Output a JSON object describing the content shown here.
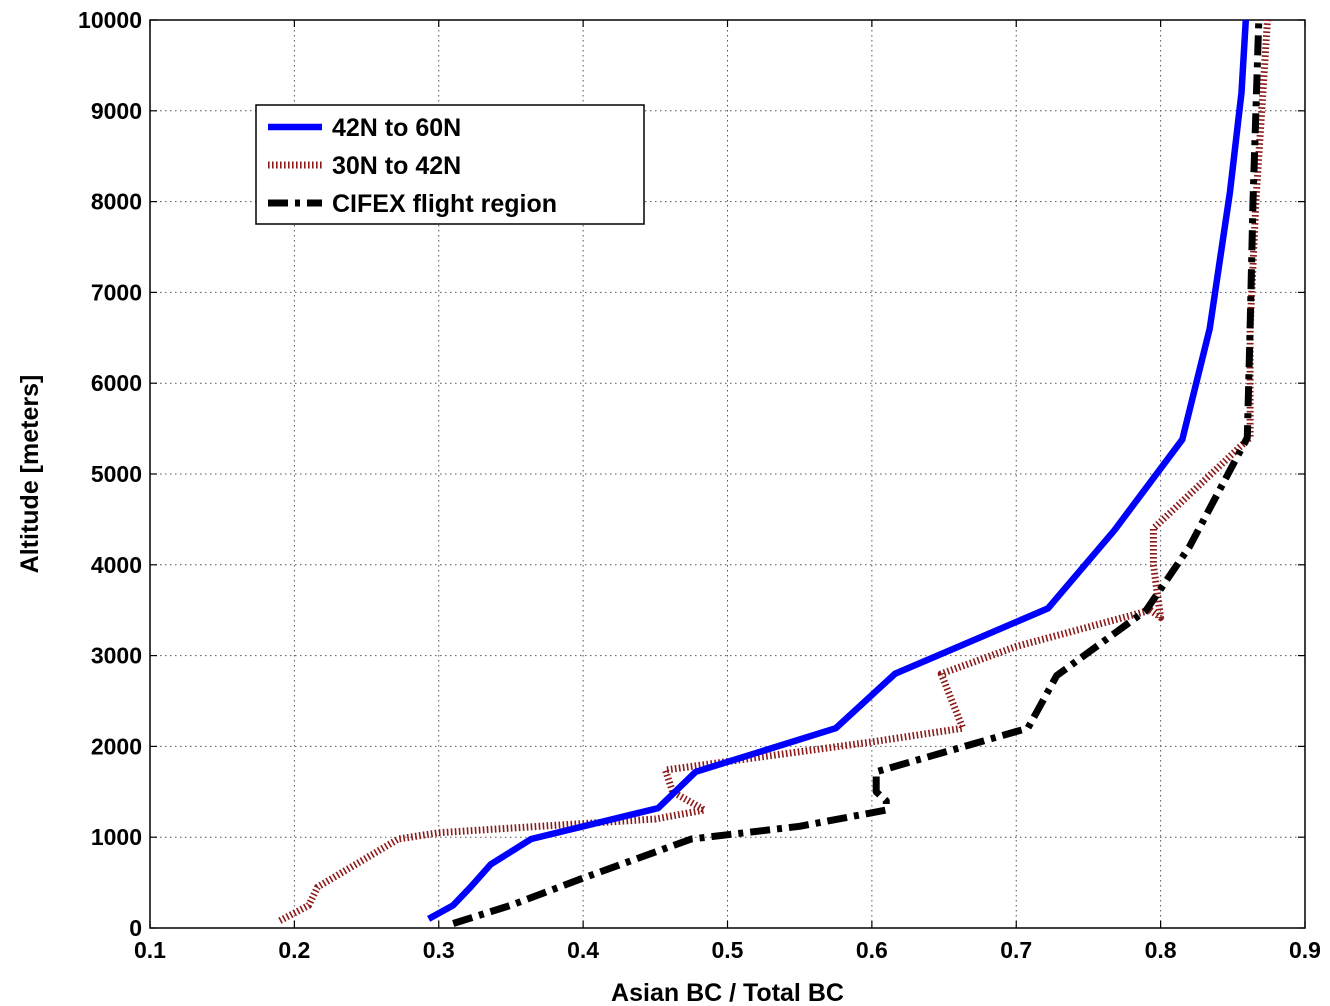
{
  "chart_data": {
    "type": "line",
    "title": "",
    "xlabel": "Asian BC / Total BC",
    "ylabel": "Altitude [meters]",
    "xlim": [
      0.1,
      0.9
    ],
    "ylim": [
      0,
      10000
    ],
    "xticks": [
      0.1,
      0.2,
      0.3,
      0.4,
      0.5,
      0.6,
      0.7,
      0.8,
      0.9
    ],
    "yticks": [
      0,
      1000,
      2000,
      3000,
      4000,
      5000,
      6000,
      7000,
      8000,
      9000,
      10000
    ],
    "xtick_labels": [
      "0.1",
      "0.2",
      "0.3",
      "0.4",
      "0.5",
      "0.6",
      "0.7",
      "0.8",
      "0.9"
    ],
    "ytick_labels": [
      "0",
      "1000",
      "2000",
      "3000",
      "4000",
      "5000",
      "6000",
      "7000",
      "8000",
      "9000",
      "10000"
    ],
    "grid": true,
    "legend_position": "top-left",
    "series": [
      {
        "name": "42N to 60N",
        "color": "#0000ff",
        "style": "solid",
        "points": [
          [
            0.293,
            100
          ],
          [
            0.31,
            250
          ],
          [
            0.322,
            450
          ],
          [
            0.336,
            700
          ],
          [
            0.364,
            980
          ],
          [
            0.452,
            1320
          ],
          [
            0.478,
            1720
          ],
          [
            0.575,
            2200
          ],
          [
            0.616,
            2800
          ],
          [
            0.722,
            3520
          ],
          [
            0.768,
            4380
          ],
          [
            0.815,
            5380
          ],
          [
            0.834,
            6600
          ],
          [
            0.848,
            8100
          ],
          [
            0.856,
            9200
          ],
          [
            0.859,
            10000
          ]
        ]
      },
      {
        "name": "30N to 42N",
        "color": "#8b1a1a",
        "style": "dotted",
        "points": [
          [
            0.19,
            80
          ],
          [
            0.21,
            250
          ],
          [
            0.216,
            450
          ],
          [
            0.272,
            980
          ],
          [
            0.3,
            1050
          ],
          [
            0.45,
            1200
          ],
          [
            0.484,
            1300
          ],
          [
            0.462,
            1500
          ],
          [
            0.457,
            1740
          ],
          [
            0.6,
            2050
          ],
          [
            0.663,
            2200
          ],
          [
            0.648,
            2800
          ],
          [
            0.7,
            3100
          ],
          [
            0.793,
            3500
          ],
          [
            0.8,
            3420
          ],
          [
            0.795,
            4000
          ],
          [
            0.795,
            4400
          ],
          [
            0.855,
            5300
          ],
          [
            0.862,
            5400
          ],
          [
            0.862,
            6600
          ],
          [
            0.866,
            8000
          ],
          [
            0.87,
            9000
          ],
          [
            0.874,
            10000
          ]
        ]
      },
      {
        "name": "CIFEX flight region",
        "color": "#000000",
        "style": "dashdot",
        "points": [
          [
            0.31,
            50
          ],
          [
            0.35,
            250
          ],
          [
            0.4,
            550
          ],
          [
            0.475,
            980
          ],
          [
            0.55,
            1120
          ],
          [
            0.61,
            1300
          ],
          [
            0.61,
            1400
          ],
          [
            0.603,
            1500
          ],
          [
            0.603,
            1720
          ],
          [
            0.708,
            2200
          ],
          [
            0.728,
            2780
          ],
          [
            0.79,
            3500
          ],
          [
            0.82,
            4200
          ],
          [
            0.86,
            5400
          ],
          [
            0.862,
            6600
          ],
          [
            0.864,
            8000
          ],
          [
            0.866,
            9000
          ],
          [
            0.868,
            10000
          ]
        ]
      }
    ]
  }
}
